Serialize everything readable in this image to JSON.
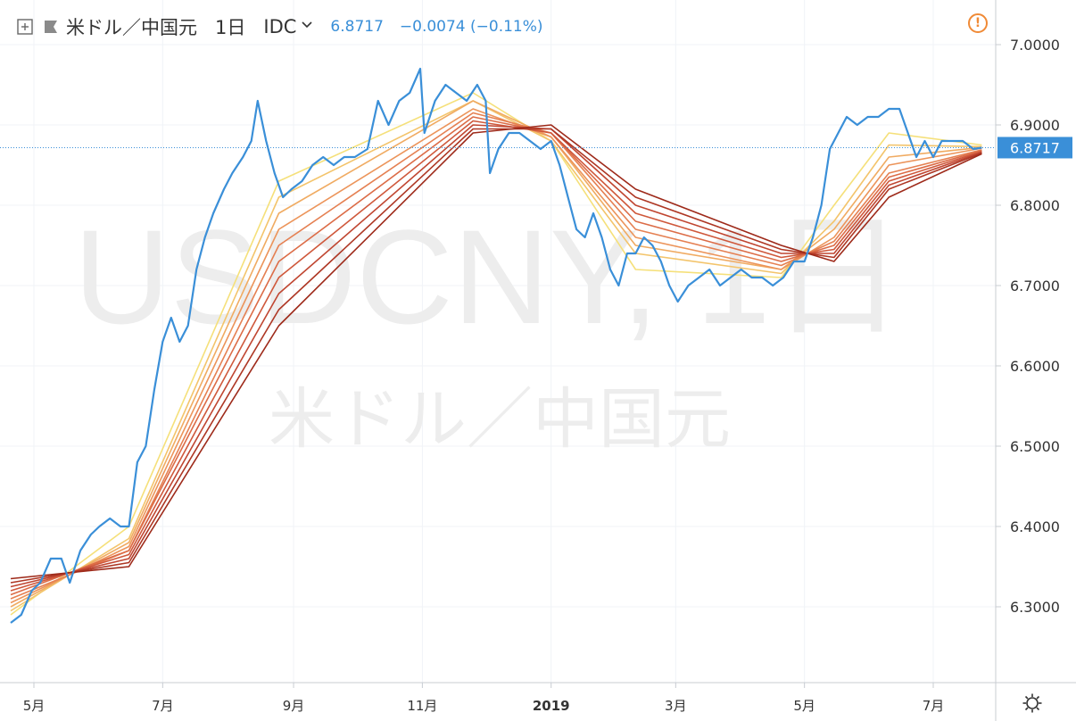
{
  "header": {
    "symbol_name": "米ドル／中国元",
    "timeframe": "1日",
    "source": "IDC",
    "last_value": "6.8717",
    "change": "−0.0074 (−0.11%)"
  },
  "watermark": {
    "ticker": "USDCNY, 1日",
    "name": "米ドル／中国元"
  },
  "icons": {
    "add": "plus-square-icon",
    "flag": "flag-icon",
    "source_dropdown": "chevron-down-icon",
    "alert": "exclamation-circle-icon",
    "settings": "gear-icon"
  },
  "colors": {
    "price_line": "#3a8fd8",
    "ribbon_light": "#f5e07a",
    "ribbon_dark": "#9e2a1a",
    "price_badge": "#3a8fd8",
    "alert": "#f08a36"
  },
  "chart_data": {
    "type": "line",
    "title": "",
    "xlabel": "",
    "ylabel": "",
    "ylim": [
      6.2,
      7.05
    ],
    "y_ticks": [
      "7.0000",
      "6.9000",
      "6.8000",
      "6.7000",
      "6.6000",
      "6.5000",
      "6.4000",
      "6.3000"
    ],
    "x_ticks": [
      {
        "label": "5月",
        "date": "2018-05-01"
      },
      {
        "label": "7月",
        "date": "2018-07-01"
      },
      {
        "label": "9月",
        "date": "2018-09-01"
      },
      {
        "label": "11月",
        "date": "2018-11-01"
      },
      {
        "label": "2019",
        "date": "2019-01-01",
        "bold": true
      },
      {
        "label": "3月",
        "date": "2019-03-01"
      },
      {
        "label": "5月",
        "date": "2019-05-01"
      },
      {
        "label": "7月",
        "date": "2019-07-01"
      }
    ],
    "grid": true,
    "current_price": {
      "value": 6.8717,
      "label": "6.8717"
    },
    "series": [
      {
        "style": "price",
        "points": [
          [
            "2018-04-20",
            6.28
          ],
          [
            "2018-04-25",
            6.29
          ],
          [
            "2018-04-30",
            6.32
          ],
          [
            "2018-05-04",
            6.33
          ],
          [
            "2018-05-09",
            6.36
          ],
          [
            "2018-05-14",
            6.36
          ],
          [
            "2018-05-18",
            6.33
          ],
          [
            "2018-05-23",
            6.37
          ],
          [
            "2018-05-28",
            6.39
          ],
          [
            "2018-06-01",
            6.4
          ],
          [
            "2018-06-06",
            6.41
          ],
          [
            "2018-06-11",
            6.4
          ],
          [
            "2018-06-15",
            6.4
          ],
          [
            "2018-06-19",
            6.48
          ],
          [
            "2018-06-23",
            6.5
          ],
          [
            "2018-06-27",
            6.57
          ],
          [
            "2018-07-01",
            6.63
          ],
          [
            "2018-07-05",
            6.66
          ],
          [
            "2018-07-09",
            6.63
          ],
          [
            "2018-07-13",
            6.65
          ],
          [
            "2018-07-17",
            6.72
          ],
          [
            "2018-07-21",
            6.76
          ],
          [
            "2018-07-25",
            6.79
          ],
          [
            "2018-07-30",
            6.82
          ],
          [
            "2018-08-03",
            6.84
          ],
          [
            "2018-08-08",
            6.86
          ],
          [
            "2018-08-12",
            6.88
          ],
          [
            "2018-08-15",
            6.93
          ],
          [
            "2018-08-19",
            6.88
          ],
          [
            "2018-08-23",
            6.84
          ],
          [
            "2018-08-27",
            6.81
          ],
          [
            "2018-08-31",
            6.82
          ],
          [
            "2018-09-05",
            6.83
          ],
          [
            "2018-09-10",
            6.85
          ],
          [
            "2018-09-15",
            6.86
          ],
          [
            "2018-09-20",
            6.85
          ],
          [
            "2018-09-25",
            6.86
          ],
          [
            "2018-09-30",
            6.86
          ],
          [
            "2018-10-06",
            6.87
          ],
          [
            "2018-10-11",
            6.93
          ],
          [
            "2018-10-16",
            6.9
          ],
          [
            "2018-10-21",
            6.93
          ],
          [
            "2018-10-26",
            6.94
          ],
          [
            "2018-10-31",
            6.97
          ],
          [
            "2018-11-02",
            6.89
          ],
          [
            "2018-11-07",
            6.93
          ],
          [
            "2018-11-12",
            6.95
          ],
          [
            "2018-11-17",
            6.94
          ],
          [
            "2018-11-22",
            6.93
          ],
          [
            "2018-11-27",
            6.95
          ],
          [
            "2018-12-01",
            6.93
          ],
          [
            "2018-12-03",
            6.84
          ],
          [
            "2018-12-07",
            6.87
          ],
          [
            "2018-12-12",
            6.89
          ],
          [
            "2018-12-17",
            6.89
          ],
          [
            "2018-12-22",
            6.88
          ],
          [
            "2018-12-27",
            6.87
          ],
          [
            "2019-01-01",
            6.88
          ],
          [
            "2019-01-05",
            6.85
          ],
          [
            "2019-01-09",
            6.81
          ],
          [
            "2019-01-13",
            6.77
          ],
          [
            "2019-01-17",
            6.76
          ],
          [
            "2019-01-21",
            6.79
          ],
          [
            "2019-01-25",
            6.76
          ],
          [
            "2019-01-29",
            6.72
          ],
          [
            "2019-02-02",
            6.7
          ],
          [
            "2019-02-06",
            6.74
          ],
          [
            "2019-02-10",
            6.74
          ],
          [
            "2019-02-14",
            6.76
          ],
          [
            "2019-02-18",
            6.75
          ],
          [
            "2019-02-22",
            6.73
          ],
          [
            "2019-02-26",
            6.7
          ],
          [
            "2019-03-02",
            6.68
          ],
          [
            "2019-03-07",
            6.7
          ],
          [
            "2019-03-12",
            6.71
          ],
          [
            "2019-03-17",
            6.72
          ],
          [
            "2019-03-22",
            6.7
          ],
          [
            "2019-03-27",
            6.71
          ],
          [
            "2019-04-01",
            6.72
          ],
          [
            "2019-04-06",
            6.71
          ],
          [
            "2019-04-11",
            6.71
          ],
          [
            "2019-04-16",
            6.7
          ],
          [
            "2019-04-21",
            6.71
          ],
          [
            "2019-04-26",
            6.73
          ],
          [
            "2019-05-01",
            6.73
          ],
          [
            "2019-05-05",
            6.76
          ],
          [
            "2019-05-09",
            6.8
          ],
          [
            "2019-05-13",
            6.87
          ],
          [
            "2019-05-17",
            6.89
          ],
          [
            "2019-05-21",
            6.91
          ],
          [
            "2019-05-26",
            6.9
          ],
          [
            "2019-05-31",
            6.91
          ],
          [
            "2019-06-05",
            6.91
          ],
          [
            "2019-06-10",
            6.92
          ],
          [
            "2019-06-15",
            6.92
          ],
          [
            "2019-06-19",
            6.89
          ],
          [
            "2019-06-23",
            6.86
          ],
          [
            "2019-06-27",
            6.88
          ],
          [
            "2019-07-01",
            6.86
          ],
          [
            "2019-07-05",
            6.88
          ],
          [
            "2019-07-10",
            6.88
          ],
          [
            "2019-07-15",
            6.88
          ],
          [
            "2019-07-20",
            6.87
          ],
          [
            "2019-07-24",
            6.8717
          ]
        ]
      },
      {
        "style": "ribbon",
        "band": 0,
        "points": [
          [
            "2018-04-20",
            6.29
          ],
          [
            "2018-06-15",
            6.4
          ],
          [
            "2018-08-25",
            6.83
          ],
          [
            "2018-11-25",
            6.94
          ],
          [
            "2019-01-01",
            6.88
          ],
          [
            "2019-02-10",
            6.72
          ],
          [
            "2019-04-20",
            6.71
          ],
          [
            "2019-05-15",
            6.8
          ],
          [
            "2019-06-10",
            6.89
          ],
          [
            "2019-07-24",
            6.875
          ]
        ]
      },
      {
        "style": "ribbon",
        "band": 1,
        "points": [
          [
            "2018-04-20",
            6.295
          ],
          [
            "2018-06-15",
            6.385
          ],
          [
            "2018-08-25",
            6.81
          ],
          [
            "2018-11-25",
            6.93
          ],
          [
            "2019-01-01",
            6.88
          ],
          [
            "2019-02-10",
            6.74
          ],
          [
            "2019-04-20",
            6.715
          ],
          [
            "2019-05-15",
            6.78
          ],
          [
            "2019-06-10",
            6.875
          ],
          [
            "2019-07-24",
            6.873
          ]
        ]
      },
      {
        "style": "ribbon",
        "band": 2,
        "points": [
          [
            "2018-04-20",
            6.3
          ],
          [
            "2018-06-15",
            6.38
          ],
          [
            "2018-08-25",
            6.79
          ],
          [
            "2018-11-25",
            6.93
          ],
          [
            "2019-01-01",
            6.885
          ],
          [
            "2019-02-10",
            6.75
          ],
          [
            "2019-04-20",
            6.72
          ],
          [
            "2019-05-15",
            6.77
          ],
          [
            "2019-06-10",
            6.86
          ],
          [
            "2019-07-24",
            6.872
          ]
        ]
      },
      {
        "style": "ribbon",
        "band": 3,
        "points": [
          [
            "2018-04-20",
            6.305
          ],
          [
            "2018-06-15",
            6.375
          ],
          [
            "2018-08-25",
            6.77
          ],
          [
            "2018-11-25",
            6.92
          ],
          [
            "2019-01-01",
            6.885
          ],
          [
            "2019-02-10",
            6.76
          ],
          [
            "2019-04-20",
            6.72
          ],
          [
            "2019-05-15",
            6.76
          ],
          [
            "2019-06-10",
            6.85
          ],
          [
            "2019-07-24",
            6.871
          ]
        ]
      },
      {
        "style": "ribbon",
        "band": 4,
        "points": [
          [
            "2018-04-20",
            6.31
          ],
          [
            "2018-06-15",
            6.37
          ],
          [
            "2018-08-25",
            6.75
          ],
          [
            "2018-11-25",
            6.915
          ],
          [
            "2019-01-01",
            6.89
          ],
          [
            "2019-02-10",
            6.77
          ],
          [
            "2019-04-20",
            6.725
          ],
          [
            "2019-05-15",
            6.755
          ],
          [
            "2019-06-10",
            6.84
          ],
          [
            "2019-07-24",
            6.869
          ]
        ]
      },
      {
        "style": "ribbon",
        "band": 5,
        "points": [
          [
            "2018-04-20",
            6.315
          ],
          [
            "2018-06-15",
            6.37
          ],
          [
            "2018-08-25",
            6.73
          ],
          [
            "2018-11-25",
            6.91
          ],
          [
            "2019-01-01",
            6.89
          ],
          [
            "2019-02-10",
            6.78
          ],
          [
            "2019-04-20",
            6.73
          ],
          [
            "2019-05-15",
            6.75
          ],
          [
            "2019-06-10",
            6.835
          ],
          [
            "2019-07-24",
            6.868
          ]
        ]
      },
      {
        "style": "ribbon",
        "band": 6,
        "points": [
          [
            "2018-04-20",
            6.32
          ],
          [
            "2018-06-15",
            6.365
          ],
          [
            "2018-08-25",
            6.71
          ],
          [
            "2018-11-25",
            6.905
          ],
          [
            "2019-01-01",
            6.89
          ],
          [
            "2019-02-10",
            6.79
          ],
          [
            "2019-04-20",
            6.735
          ],
          [
            "2019-05-15",
            6.745
          ],
          [
            "2019-06-10",
            6.83
          ],
          [
            "2019-07-24",
            6.867
          ]
        ]
      },
      {
        "style": "ribbon",
        "band": 7,
        "points": [
          [
            "2018-04-20",
            6.325
          ],
          [
            "2018-06-15",
            6.36
          ],
          [
            "2018-08-25",
            6.69
          ],
          [
            "2018-11-25",
            6.9
          ],
          [
            "2019-01-01",
            6.895
          ],
          [
            "2019-02-10",
            6.8
          ],
          [
            "2019-04-20",
            6.74
          ],
          [
            "2019-05-15",
            6.74
          ],
          [
            "2019-06-10",
            6.825
          ],
          [
            "2019-07-24",
            6.866
          ]
        ]
      },
      {
        "style": "ribbon",
        "band": 8,
        "points": [
          [
            "2018-04-20",
            6.33
          ],
          [
            "2018-06-15",
            6.355
          ],
          [
            "2018-08-25",
            6.67
          ],
          [
            "2018-11-25",
            6.895
          ],
          [
            "2019-01-01",
            6.895
          ],
          [
            "2019-02-10",
            6.81
          ],
          [
            "2019-04-20",
            6.745
          ],
          [
            "2019-05-15",
            6.735
          ],
          [
            "2019-06-10",
            6.82
          ],
          [
            "2019-07-24",
            6.865
          ]
        ]
      },
      {
        "style": "ribbon",
        "band": 9,
        "points": [
          [
            "2018-04-20",
            6.335
          ],
          [
            "2018-06-15",
            6.35
          ],
          [
            "2018-08-25",
            6.65
          ],
          [
            "2018-11-25",
            6.89
          ],
          [
            "2019-01-01",
            6.9
          ],
          [
            "2019-02-10",
            6.82
          ],
          [
            "2019-04-20",
            6.75
          ],
          [
            "2019-05-15",
            6.73
          ],
          [
            "2019-06-10",
            6.81
          ],
          [
            "2019-07-24",
            6.864
          ]
        ]
      }
    ]
  }
}
